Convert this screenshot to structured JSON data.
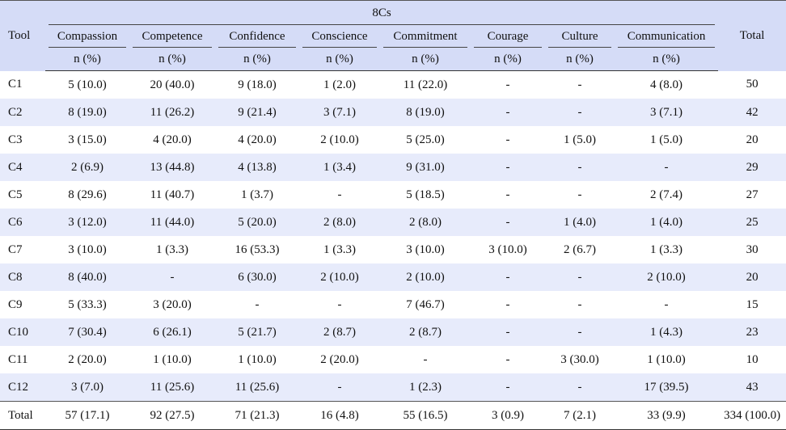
{
  "table": {
    "group_header": "8Cs",
    "tool_header": "Tool",
    "total_header": "Total",
    "columns": [
      "Compassion",
      "Competence",
      "Confidence",
      "Conscience",
      "Commitment",
      "Courage",
      "Culture",
      "Communication"
    ],
    "unit_label": "n (%)",
    "rows": [
      {
        "tool": "C1",
        "cells": [
          "5 (10.0)",
          "20 (40.0)",
          "9 (18.0)",
          "1 (2.0)",
          "11 (22.0)",
          "-",
          "-",
          "4 (8.0)"
        ],
        "total": "50"
      },
      {
        "tool": "C2",
        "cells": [
          "8 (19.0)",
          "11 (26.2)",
          "9 (21.4)",
          "3 (7.1)",
          "8 (19.0)",
          "-",
          "-",
          "3 (7.1)"
        ],
        "total": "42"
      },
      {
        "tool": "C3",
        "cells": [
          "3 (15.0)",
          "4 (20.0)",
          "4 (20.0)",
          "2 (10.0)",
          "5 (25.0)",
          "-",
          "1 (5.0)",
          "1 (5.0)"
        ],
        "total": "20"
      },
      {
        "tool": "C4",
        "cells": [
          "2 (6.9)",
          "13 (44.8)",
          "4 (13.8)",
          "1 (3.4)",
          "9 (31.0)",
          "-",
          "-",
          "-"
        ],
        "total": "29"
      },
      {
        "tool": "C5",
        "cells": [
          "8 (29.6)",
          "11 (40.7)",
          "1 (3.7)",
          "-",
          "5 (18.5)",
          "-",
          "-",
          "2 (7.4)"
        ],
        "total": "27"
      },
      {
        "tool": "C6",
        "cells": [
          "3 (12.0)",
          "11 (44.0)",
          "5 (20.0)",
          "2 (8.0)",
          "2 (8.0)",
          "-",
          "1 (4.0)",
          "1 (4.0)"
        ],
        "total": "25"
      },
      {
        "tool": "C7",
        "cells": [
          "3 (10.0)",
          "1 (3.3)",
          "16 (53.3)",
          "1 (3.3)",
          "3 (10.0)",
          "3 (10.0)",
          "2 (6.7)",
          "1 (3.3)"
        ],
        "total": "30"
      },
      {
        "tool": "C8",
        "cells": [
          "8 (40.0)",
          "-",
          "6 (30.0)",
          "2 (10.0)",
          "2 (10.0)",
          "-",
          "-",
          "2 (10.0)"
        ],
        "total": "20"
      },
      {
        "tool": "C9",
        "cells": [
          "5 (33.3)",
          "3 (20.0)",
          "-",
          "-",
          "7 (46.7)",
          "-",
          "-",
          "-"
        ],
        "total": "15"
      },
      {
        "tool": "C10",
        "cells": [
          "7 (30.4)",
          "6 (26.1)",
          "5 (21.7)",
          "2 (8.7)",
          "2 (8.7)",
          "-",
          "-",
          "1 (4.3)"
        ],
        "total": "23"
      },
      {
        "tool": "C11",
        "cells": [
          "2 (20.0)",
          "1 (10.0)",
          "1 (10.0)",
          "2 (20.0)",
          "-",
          "-",
          "3 (30.0)",
          "1 (10.0)"
        ],
        "total": "10"
      },
      {
        "tool": "C12",
        "cells": [
          "3 (7.0)",
          "11 (25.6)",
          "11 (25.6)",
          "-",
          "1 (2.3)",
          "-",
          "-",
          "17 (39.5)"
        ],
        "total": "43"
      }
    ],
    "total_row": {
      "tool": "Total",
      "cells": [
        "57 (17.1)",
        "92 (27.5)",
        "71 (21.3)",
        "16 (4.8)",
        "55 (16.5)",
        "3 (0.9)",
        "7 (2.1)",
        "33 (9.9)"
      ],
      "total": "334 (100.0)"
    }
  }
}
